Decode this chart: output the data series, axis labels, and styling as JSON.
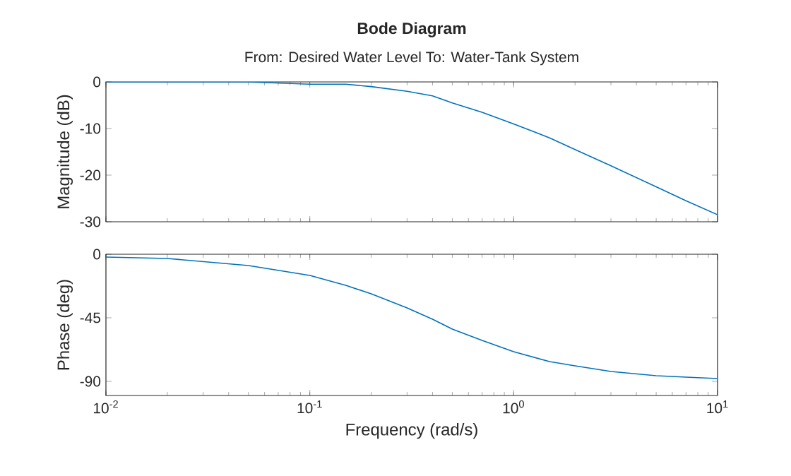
{
  "chart_data": [
    {
      "type": "line",
      "title": "Bode Diagram",
      "subtitle": "From: Desired  Water Level  To: Water-Tank System",
      "ylabel": "Magnitude (dB)",
      "log": "x",
      "tick_labels": "y",
      "xlim": [
        0.01,
        10
      ],
      "xticks": [
        0.01,
        0.1,
        1,
        10
      ],
      "ylim": [
        -30,
        0
      ],
      "yticks": [
        -30,
        -20,
        -10,
        0
      ],
      "x": [
        0.01,
        0.02,
        0.05,
        0.1,
        0.15,
        0.2,
        0.3,
        0.4,
        0.5,
        0.7,
        1,
        1.5,
        2,
        3,
        5,
        7,
        10
      ],
      "series": [
        {
          "color": "#0072bd",
          "values": [
            0,
            0,
            0,
            -0.5,
            -0.5,
            -1,
            -2,
            -3,
            -4.5,
            -6.5,
            -9,
            -12,
            -14.5,
            -18,
            -22.5,
            -25.5,
            -28.5
          ]
        }
      ]
    },
    {
      "type": "line",
      "xlabel": "Frequency (rad/s)",
      "ylabel": "Phase (deg)",
      "log": "x",
      "xlim": [
        0.01,
        10
      ],
      "xticks": [
        {
          "value": 0.01,
          "label": "10$^{-2}$"
        },
        {
          "value": 0.1,
          "label": "10$^{-1}$"
        },
        {
          "value": 1,
          "label": "10$^{0}$"
        },
        {
          "value": 10,
          "label": "10$^{1}$"
        }
      ],
      "ylim": [
        -100,
        0
      ],
      "yticks": [
        -90,
        -45,
        0
      ],
      "x": [
        0.01,
        0.02,
        0.05,
        0.1,
        0.15,
        0.2,
        0.3,
        0.4,
        0.5,
        0.7,
        1,
        1.5,
        2,
        3,
        5,
        7,
        10
      ],
      "series": [
        {
          "color": "#0072bd",
          "values": [
            -2,
            -3,
            -8,
            -15,
            -22,
            -28,
            -38,
            -46,
            -53,
            -61,
            -69,
            -76,
            -79,
            -83,
            -86,
            -87,
            -88
          ]
        }
      ]
    }
  ]
}
